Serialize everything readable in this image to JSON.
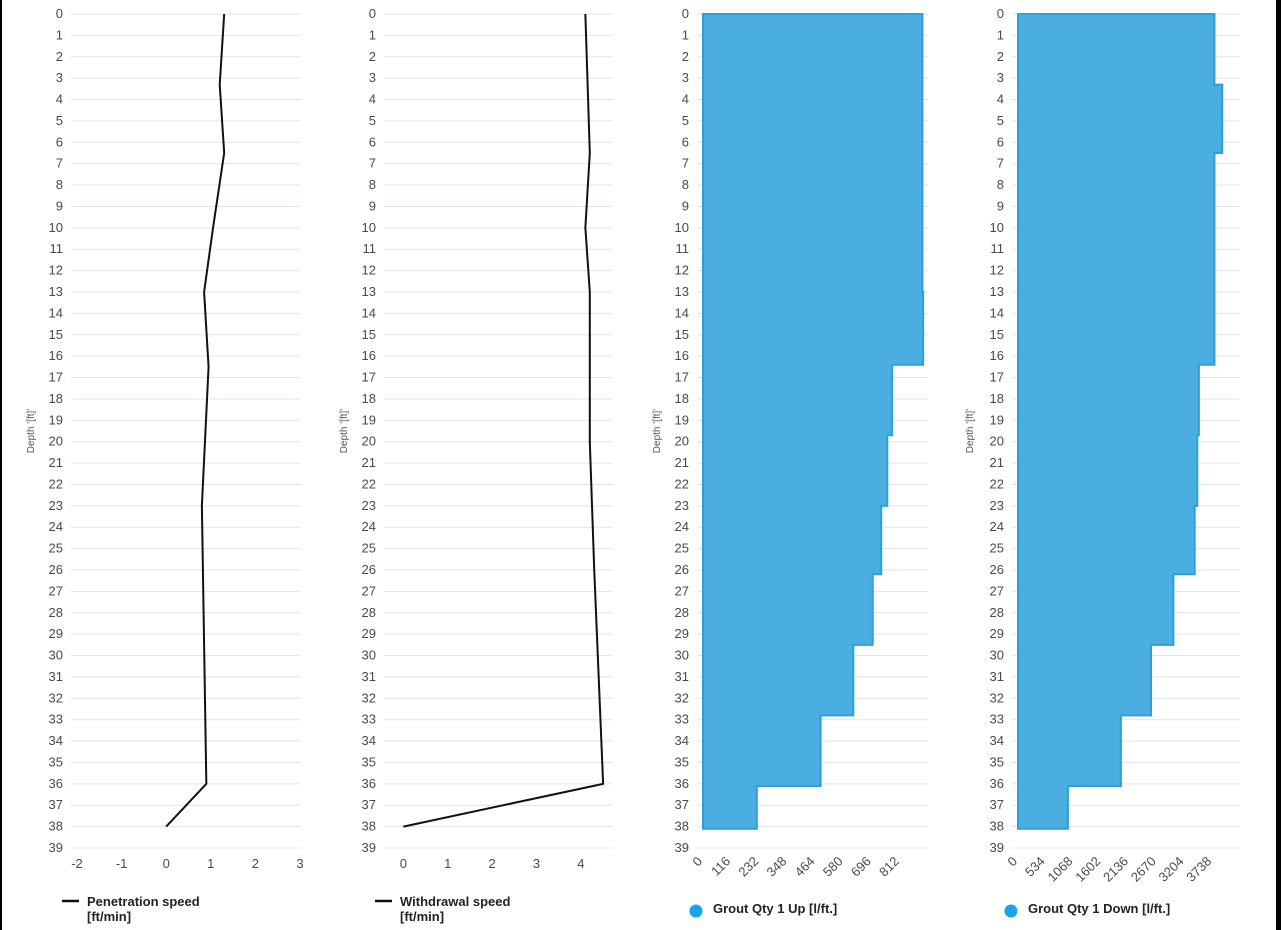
{
  "chart_data": [
    {
      "type": "line",
      "ylabel": "Depth '[ft]'",
      "legend": [
        "Penetration speed",
        "[ft/min]"
      ],
      "legend_marker": "line",
      "color": "#111111",
      "xlim": [
        -2,
        3
      ],
      "xticks": [
        "-2",
        "-1",
        "0",
        "1",
        "2",
        "3"
      ],
      "ylim": [
        0,
        39
      ],
      "points": [
        {
          "x": 1.3,
          "y": 0
        },
        {
          "x": 1.2,
          "y": 3.3
        },
        {
          "x": 1.3,
          "y": 6.5
        },
        {
          "x": 1.05,
          "y": 10
        },
        {
          "x": 0.85,
          "y": 13
        },
        {
          "x": 0.95,
          "y": 16.5
        },
        {
          "x": 0.8,
          "y": 23
        },
        {
          "x": 0.9,
          "y": 36
        },
        {
          "x": 0,
          "y": 38
        }
      ]
    },
    {
      "type": "line",
      "ylabel": "Depth '[ft]'",
      "legend": [
        "Withdrawal speed",
        "[ft/min]"
      ],
      "legend_marker": "line",
      "color": "#111111",
      "xlim": [
        -0.3,
        4.7
      ],
      "xticks": [
        "0",
        "1",
        "2",
        "3",
        "4"
      ],
      "ylim": [
        0,
        39
      ],
      "points": [
        {
          "x": 4.1,
          "y": 0
        },
        {
          "x": 4.2,
          "y": 6.5
        },
        {
          "x": 4.1,
          "y": 10
        },
        {
          "x": 4.2,
          "y": 13
        },
        {
          "x": 4.2,
          "y": 16.5
        },
        {
          "x": 4.2,
          "y": 20
        },
        {
          "x": 4.3,
          "y": 26
        },
        {
          "x": 4.5,
          "y": 36
        },
        {
          "x": 0,
          "y": 38
        }
      ]
    },
    {
      "type": "area",
      "ylabel": "Depth '[ft]'",
      "legend": [
        "Grout Qty 1 Up [l/ft.]"
      ],
      "legend_marker": "dot",
      "color": "#4aaee0",
      "xlim": [
        0,
        928
      ],
      "xticks": [
        "0",
        "116",
        "232",
        "348",
        "464",
        "580",
        "696",
        "812"
      ],
      "ylim": [
        0,
        39
      ],
      "steps": [
        {
          "from": 0,
          "to": 13,
          "value": 905
        },
        {
          "from": 13,
          "to": 16.4,
          "value": 908
        },
        {
          "from": 16.4,
          "to": 19.7,
          "value": 780
        },
        {
          "from": 19.7,
          "to": 23,
          "value": 760
        },
        {
          "from": 23,
          "to": 26.2,
          "value": 735
        },
        {
          "from": 26.2,
          "to": 29.5,
          "value": 700
        },
        {
          "from": 29.5,
          "to": 32.8,
          "value": 620
        },
        {
          "from": 32.8,
          "to": 36.1,
          "value": 485
        },
        {
          "from": 36.1,
          "to": 38.1,
          "value": 222
        }
      ]
    },
    {
      "type": "area",
      "ylabel": "Depth '[ft]'",
      "legend": [
        "Grout Qty 1 Down [l/ft.]"
      ],
      "legend_marker": "dot",
      "color": "#4aaee0",
      "xlim": [
        0,
        4272
      ],
      "xticks": [
        "0",
        "534",
        "1068",
        "1602",
        "2136",
        "2670",
        "3204",
        "3738"
      ],
      "ylim": [
        0,
        39
      ],
      "steps": [
        {
          "from": 0,
          "to": 3.3,
          "value": 3780
        },
        {
          "from": 3.3,
          "to": 6.5,
          "value": 3930
        },
        {
          "from": 6.5,
          "to": 16.4,
          "value": 3780
        },
        {
          "from": 16.4,
          "to": 19.7,
          "value": 3480
        },
        {
          "from": 19.7,
          "to": 23,
          "value": 3450
        },
        {
          "from": 23,
          "to": 26.2,
          "value": 3400
        },
        {
          "from": 26.2,
          "to": 29.5,
          "value": 2990
        },
        {
          "from": 29.5,
          "to": 32.8,
          "value": 2560
        },
        {
          "from": 32.8,
          "to": 36.1,
          "value": 1980
        },
        {
          "from": 36.1,
          "to": 38.1,
          "value": 960
        }
      ]
    }
  ]
}
